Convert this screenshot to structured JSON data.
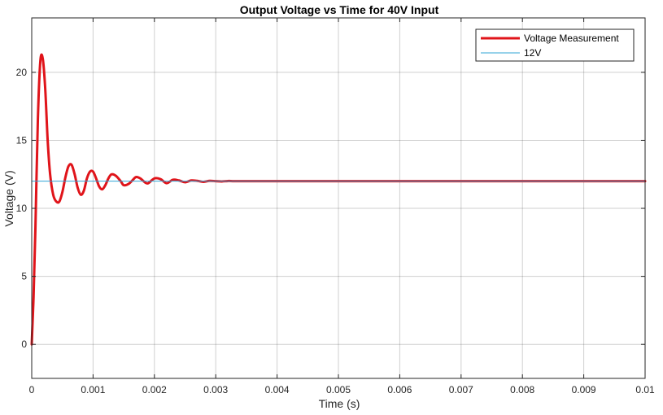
{
  "chart_data": {
    "type": "line",
    "title": "Output Voltage vs Time for 40V Input",
    "xlabel": "Time (s)",
    "ylabel": "Voltage (V)",
    "xlim": [
      0,
      0.01
    ],
    "ylim": [
      -2.5,
      24
    ],
    "x_ticks": [
      0,
      0.001,
      0.002,
      0.003,
      0.004,
      0.005,
      0.006,
      0.007,
      0.008,
      0.009,
      0.01
    ],
    "x_tick_labels": [
      "0",
      "0.001",
      "0.002",
      "0.003",
      "0.004",
      "0.005",
      "0.006",
      "0.007",
      "0.008",
      "0.009",
      "0.01"
    ],
    "y_ticks": [
      0,
      5,
      10,
      15,
      20
    ],
    "y_tick_labels": [
      "0",
      "5",
      "10",
      "15",
      "20"
    ],
    "grid": true,
    "legend_position": "top-right",
    "series": [
      {
        "name": "Voltage Measurement",
        "color": "#e0141a",
        "x": [
          0,
          3e-05,
          6e-05,
          0.0001,
          0.00014,
          0.00018,
          0.00022,
          0.00026,
          0.0003,
          0.00035,
          0.0004,
          0.00045,
          0.0005,
          0.00055,
          0.0006,
          0.00065,
          0.0007,
          0.00075,
          0.0008,
          0.00085,
          0.0009,
          0.00095,
          0.001,
          0.00105,
          0.0011,
          0.00115,
          0.0012,
          0.00125,
          0.0013,
          0.00137,
          0.00145,
          0.0015,
          0.00158,
          0.00165,
          0.0017,
          0.00177,
          0.00185,
          0.0019,
          0.002,
          0.0021,
          0.0022,
          0.0023,
          0.0024,
          0.0025,
          0.0026,
          0.0027,
          0.0028,
          0.0029,
          0.003,
          0.0031,
          0.0032,
          0.0033,
          0.0035,
          0.004,
          0.005,
          0.006,
          0.007,
          0.008,
          0.009,
          0.01
        ],
        "y": [
          0,
          3.5,
          8.5,
          16.5,
          20.8,
          21.0,
          18.8,
          15.0,
          12.5,
          11.0,
          10.5,
          10.5,
          11.2,
          12.3,
          13.1,
          13.2,
          12.5,
          11.5,
          11.0,
          11.3,
          12.2,
          12.7,
          12.7,
          12.2,
          11.6,
          11.4,
          11.7,
          12.2,
          12.5,
          12.4,
          12.0,
          11.7,
          11.8,
          12.1,
          12.3,
          12.2,
          11.9,
          11.85,
          12.2,
          12.15,
          11.85,
          12.1,
          12.05,
          11.92,
          12.05,
          12.02,
          11.95,
          12.02,
          12.0,
          11.98,
          12.01,
          12.0,
          12.0,
          12.0,
          12.0,
          12.0,
          12.0,
          12.0,
          12.0,
          12.0
        ]
      },
      {
        "name": "12V",
        "color": "#2fa4d6",
        "x": [
          0,
          0.01
        ],
        "y": [
          12,
          12
        ]
      }
    ]
  }
}
